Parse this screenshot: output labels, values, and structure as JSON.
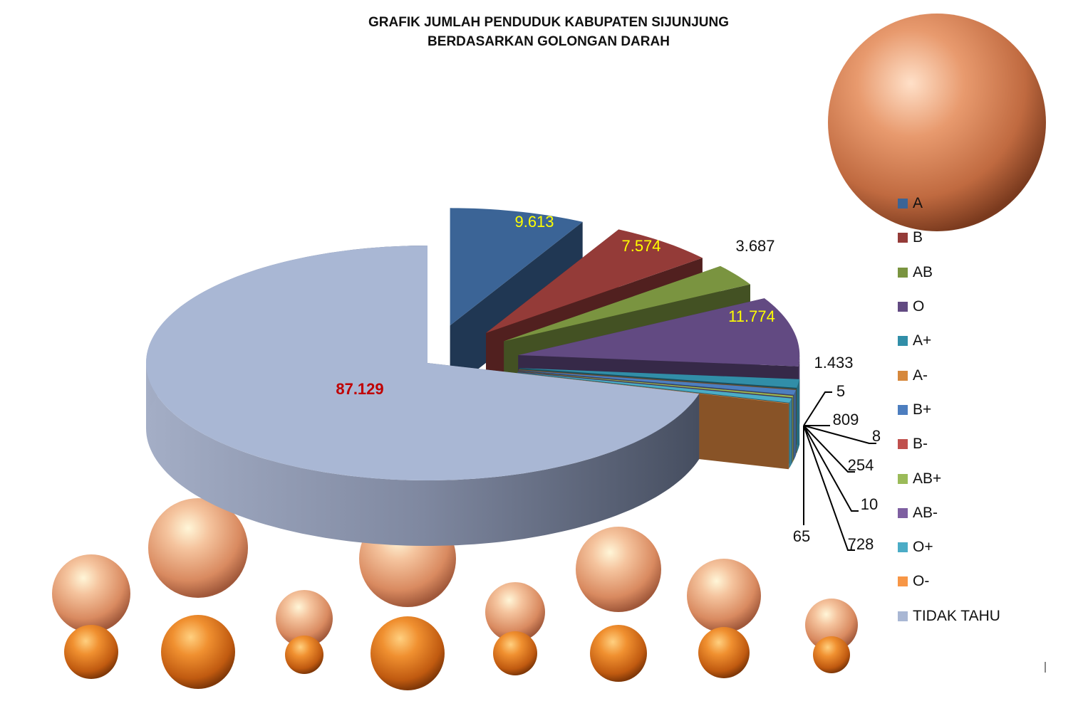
{
  "chart_data": {
    "type": "pie",
    "title_lines": [
      "GRAFIK JUMLAH PENDUDUK KABUPATEN SIJUNJUNG",
      "BERDASARKAN GOLONGAN DARAH"
    ],
    "labels": [
      "A",
      "B",
      "AB",
      "O",
      "A+",
      "A-",
      "B+",
      "B-",
      "AB+",
      "AB-",
      "O+",
      "O-",
      "TIDAK TAHU"
    ],
    "values": [
      9613,
      7574,
      3687,
      11774,
      1433,
      5,
      809,
      8,
      254,
      10,
      728,
      65,
      87129
    ],
    "data_labels": [
      "9.613",
      "7.574",
      "3.687",
      "11.774",
      "1.433",
      "5",
      "809",
      "8",
      "254",
      "10",
      "728",
      "65",
      "87.129"
    ],
    "colors": [
      "#3B6496",
      "#943B38",
      "#7A9440",
      "#624A82",
      "#318EA8",
      "#D6883C",
      "#4D7EBF",
      "#C0504D",
      "#9BBB59",
      "#7E5FA1",
      "#4BACC6",
      "#F79646",
      "#A9B7D4"
    ],
    "label_colors": [
      "#FFFF00",
      "#FFFF00",
      "#111111",
      "#FFFF00",
      "#111111",
      "#111111",
      "#111111",
      "#111111",
      "#111111",
      "#111111",
      "#111111",
      "#111111",
      "#C00000"
    ],
    "legend_position": "right",
    "exploded": true,
    "three_d": true
  }
}
